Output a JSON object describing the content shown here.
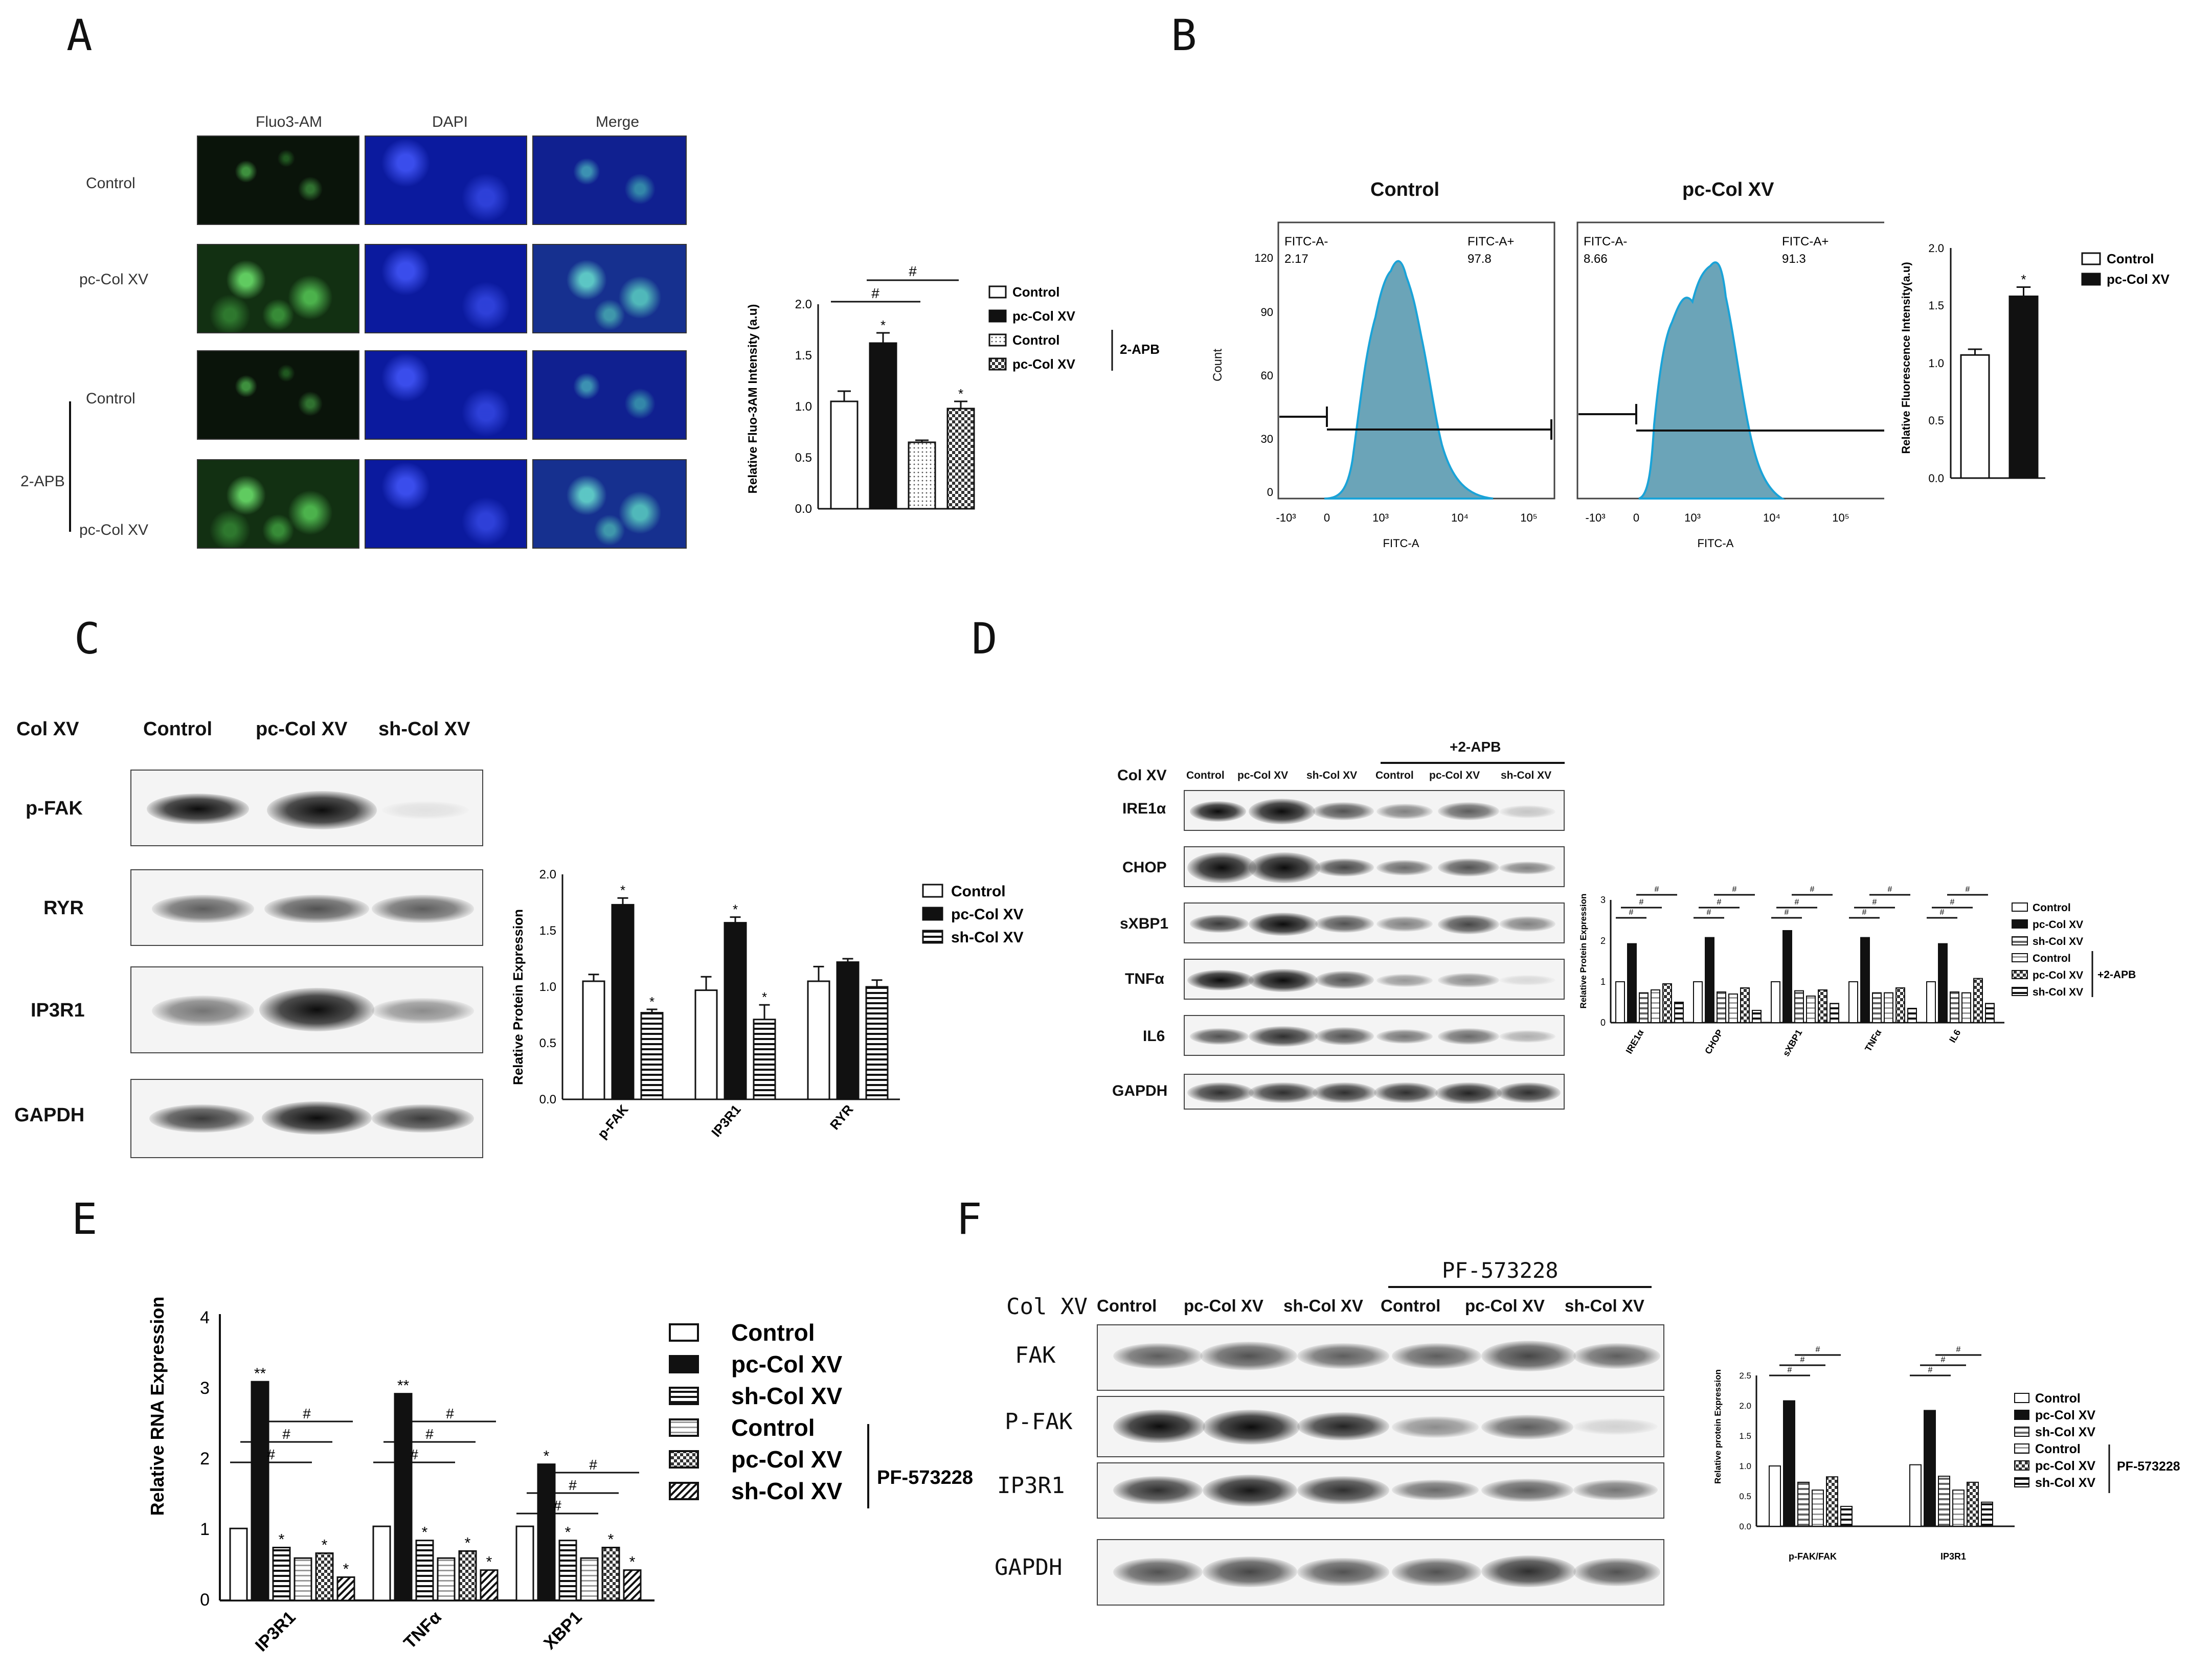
{
  "panels": {
    "A": {
      "label": "A",
      "columns": [
        "Fluo3-AM",
        "DAPI",
        "Merge"
      ],
      "rows": [
        "Control",
        "pc-Col XV",
        "Control",
        "pc-Col XV"
      ],
      "group_label": "2-APB"
    },
    "B": {
      "label": "B",
      "titles": [
        "Control",
        "pc-Col XV"
      ],
      "gates": [
        {
          "neg": "FITC-A-",
          "neg_val": "2.17",
          "pos": "FITC-A+",
          "pos_val": "97.8"
        },
        {
          "neg": "FITC-A-",
          "neg_val": "8.66",
          "pos": "FITC-A+",
          "pos_val": "91.3"
        }
      ],
      "ylabel": "Count",
      "xlabel": "FITC-A",
      "yticks": [
        "120",
        "90",
        "60",
        "30",
        "0"
      ],
      "xticks": [
        "-10³",
        "0",
        "10³",
        "10⁴",
        "10⁵"
      ]
    },
    "C": {
      "label": "C",
      "header": [
        "Col XV",
        "Control",
        "pc-Col XV",
        "sh-Col XV"
      ],
      "blots": [
        "p-FAK",
        "RYR",
        "IP3R1",
        "GAPDH"
      ]
    },
    "D": {
      "label": "D",
      "header": [
        "Col XV",
        "Control",
        "pc-Col XV",
        "sh-Col XV",
        "Control",
        "pc-Col XV",
        "sh-Col XV"
      ],
      "treatment": "+2-APB",
      "blots": [
        "IRE1α",
        "CHOP",
        "sXBP1",
        "TNFα",
        "IL6",
        "GAPDH"
      ]
    },
    "E": {
      "label": "E"
    },
    "F": {
      "label": "F",
      "header": [
        "Col XV",
        "Control",
        "pc-Col XV",
        "sh-Col XV",
        "Control",
        "pc-Col XV",
        "sh-Col XV"
      ],
      "treatment": "PF-573228",
      "blots": [
        "FAK",
        "P-FAK",
        "IP3R1",
        "GAPDH"
      ]
    }
  },
  "chart_data": [
    {
      "id": "A",
      "type": "bar",
      "ylabel": "Relative Fluo-3AM Intensity (a.u)",
      "ylim": [
        0,
        2.0
      ],
      "yticks": [
        "0.0",
        "0.5",
        "1.0",
        "1.5",
        "2.0"
      ],
      "series": [
        {
          "name": "Control",
          "values": [
            1.05
          ],
          "err": [
            0.1
          ],
          "mark": ""
        },
        {
          "name": "pc-Col XV",
          "values": [
            1.62
          ],
          "err": [
            0.1
          ],
          "mark": "*"
        },
        {
          "name": "Control",
          "values": [
            0.65
          ],
          "err": [
            0.02
          ],
          "mark": ""
        },
        {
          "name": "pc-Col XV",
          "values": [
            0.98
          ],
          "err": [
            0.07
          ],
          "mark": "*"
        }
      ],
      "legend_group": "2-APB",
      "brackets": [
        "#",
        "#"
      ]
    },
    {
      "id": "B",
      "type": "bar",
      "ylabel": "Relative Fluorescence Intensity(a.u)",
      "ylim": [
        0,
        2.0
      ],
      "yticks": [
        "0.0",
        "0.5",
        "1.0",
        "1.5",
        "2.0"
      ],
      "series": [
        {
          "name": "Control",
          "values": [
            1.07
          ],
          "err": [
            0.05
          ],
          "mark": ""
        },
        {
          "name": "pc-Col XV",
          "values": [
            1.58
          ],
          "err": [
            0.08
          ],
          "mark": "*"
        }
      ]
    },
    {
      "id": "C",
      "type": "bar",
      "ylabel": "Relative Protein Expression",
      "categories": [
        "p-FAK",
        "IP3R1",
        "RYR"
      ],
      "ylim": [
        0,
        2.0
      ],
      "yticks": [
        "0.0",
        "0.5",
        "1.0",
        "1.5",
        "2.0"
      ],
      "series": [
        {
          "name": "Control",
          "values": [
            1.05,
            0.97,
            1.05
          ],
          "err": [
            0.06,
            0.12,
            0.13
          ],
          "marks": [
            "",
            "",
            ""
          ]
        },
        {
          "name": "pc-Col XV",
          "values": [
            1.73,
            1.57,
            1.22
          ],
          "err": [
            0.06,
            0.05,
            0.03
          ],
          "marks": [
            "*",
            "*",
            ""
          ]
        },
        {
          "name": "sh-Col XV",
          "values": [
            0.77,
            0.71,
            1.0
          ],
          "err": [
            0.03,
            0.13,
            0.06
          ],
          "marks": [
            "*",
            "*",
            ""
          ]
        }
      ]
    },
    {
      "id": "D",
      "type": "bar",
      "ylabel": "Relative Protein Expression",
      "categories": [
        "IRE1α",
        "CHOP",
        "sXBP1",
        "TNFα",
        "IL6"
      ],
      "ylim": [
        0,
        3
      ],
      "yticks": [
        "0",
        "1",
        "2",
        "3"
      ],
      "legend_group": "+2-APB",
      "series": [
        {
          "name": "Control",
          "values": [
            1.0,
            1.0,
            1.0,
            1.0,
            1.0
          ]
        },
        {
          "name": "pc-Col XV",
          "values": [
            1.93,
            2.08,
            2.25,
            2.08,
            1.93
          ]
        },
        {
          "name": "sh-Col XV",
          "values": [
            0.73,
            0.75,
            0.78,
            0.73,
            0.75
          ]
        },
        {
          "name": "Control",
          "values": [
            0.8,
            0.7,
            0.65,
            0.73,
            0.73
          ]
        },
        {
          "name": "pc-Col XV",
          "values": [
            0.95,
            0.85,
            0.8,
            0.85,
            1.08
          ]
        },
        {
          "name": "sh-Col XV",
          "values": [
            0.5,
            0.3,
            0.47,
            0.35,
            0.47
          ]
        }
      ],
      "bracket_label": "#"
    },
    {
      "id": "E",
      "type": "bar",
      "ylabel": "Relative RNA Expression",
      "categories": [
        "IP3R1",
        "TNFα",
        "XBP1"
      ],
      "ylim": [
        0,
        4
      ],
      "yticks": [
        "0",
        "1",
        "2",
        "3",
        "4"
      ],
      "legend_group": "PF-573228",
      "series": [
        {
          "name": "Control",
          "values": [
            1.02,
            1.05,
            1.05
          ],
          "marks": [
            "",
            "",
            ""
          ]
        },
        {
          "name": "pc-Col XV",
          "values": [
            3.1,
            2.93,
            1.93
          ],
          "marks": [
            "**",
            "**",
            "*"
          ]
        },
        {
          "name": "sh-Col XV",
          "values": [
            0.75,
            0.85,
            0.85
          ],
          "marks": [
            "*",
            "*",
            "*"
          ]
        },
        {
          "name": "Control",
          "values": [
            0.6,
            0.6,
            0.6
          ],
          "marks": [
            "",
            "",
            ""
          ]
        },
        {
          "name": "pc-Col XV",
          "values": [
            0.67,
            0.7,
            0.75
          ],
          "marks": [
            "*",
            "*",
            "*"
          ]
        },
        {
          "name": "sh-Col XV",
          "values": [
            0.33,
            0.43,
            0.43
          ],
          "marks": [
            "*",
            "*",
            "*"
          ]
        }
      ],
      "bracket_label": "#"
    },
    {
      "id": "F",
      "type": "bar",
      "ylabel": "Relative protein Expression",
      "categories": [
        "p-FAK/FAK",
        "IP3R1"
      ],
      "ylim": [
        0,
        2.5
      ],
      "yticks": [
        "0.0",
        "0.5",
        "1.0",
        "1.5",
        "2.0",
        "2.5"
      ],
      "legend_group": "PF-573228",
      "series": [
        {
          "name": "Control",
          "values": [
            1.0,
            1.02
          ]
        },
        {
          "name": "pc-Col XV",
          "values": [
            2.08,
            1.92
          ]
        },
        {
          "name": "sh-Col XV",
          "values": [
            0.73,
            0.83
          ]
        },
        {
          "name": "Control",
          "values": [
            0.6,
            0.6
          ]
        },
        {
          "name": "pc-Col XV",
          "values": [
            0.82,
            0.73
          ]
        },
        {
          "name": "sh-Col XV",
          "values": [
            0.33,
            0.4
          ]
        }
      ],
      "bracket_label": "#"
    }
  ]
}
